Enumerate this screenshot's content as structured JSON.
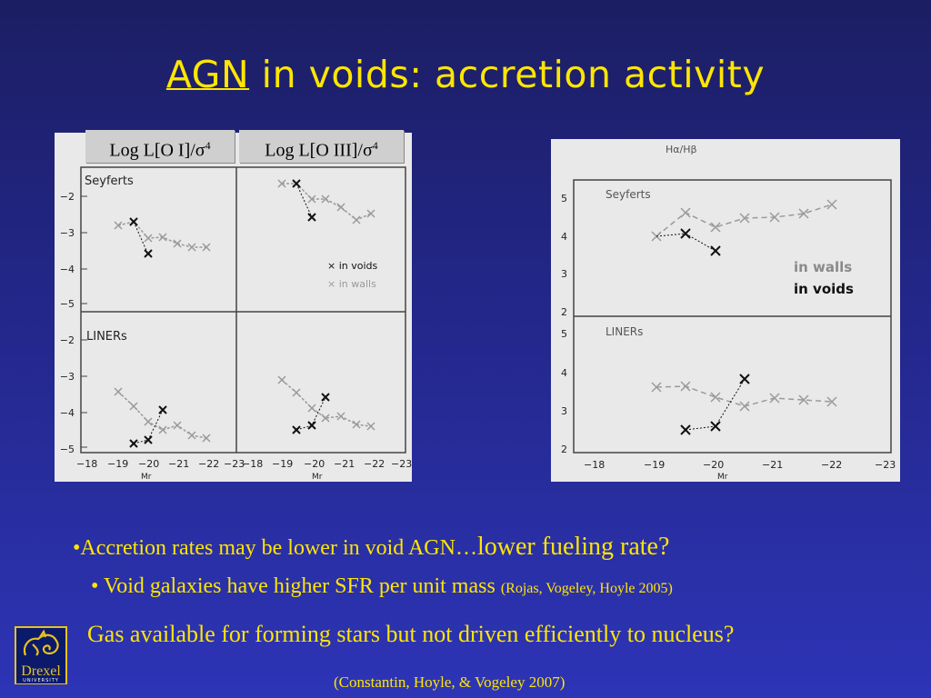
{
  "slide": {
    "title_agn": "AGN",
    "title_rest": " in voids: accretion activity"
  },
  "left_figure": {
    "header_oi": "Log L[O I]/σ",
    "header_oiii": "Log L[O III]/σ",
    "header_sup": "4",
    "label_seyferts": "Seyferts",
    "label_liners": "LINERs",
    "legend_voids": "× in voids",
    "legend_walls": "× in walls",
    "yticks": [
      "−2",
      "−3",
      "−4",
      "−5"
    ],
    "xticks_a": [
      "−18",
      "−19",
      "−20",
      "−21",
      "−22"
    ],
    "xticks_b": [
      "−23",
      "−18",
      "−19",
      "−20",
      "−21",
      "−22",
      "−23"
    ],
    "xlabel": "Mr"
  },
  "right_figure": {
    "title": "Hα/Hβ",
    "label_seyferts": "Seyferts",
    "label_liners": "LINERs",
    "legend_walls": "in walls",
    "legend_voids": "in voids",
    "yticks_top": [
      "5",
      "4",
      "3",
      "2"
    ],
    "yticks_bottom": [
      "5",
      "4",
      "3",
      "2"
    ],
    "xticks": [
      "−18",
      "−19",
      "−20",
      "−21",
      "−22",
      "−23"
    ],
    "xlabel": "Mr"
  },
  "bullets": {
    "b1_main": "•Accretion rates may be lower in void AGN…",
    "b1_big": "lower fueling rate?",
    "b2_main": "• Void galaxies have higher SFR per unit mass",
    "b2_cite": "(Rojas, Vogeley, Hoyle 2005)",
    "b3": "Gas available for forming stars but not driven efficiently to nucleus?",
    "citation": "(Constantin, Hoyle, & Vogeley 2007)"
  },
  "logo": {
    "name": "Drexel",
    "sub": "UNIVERSITY"
  },
  "colors": {
    "title": "#ffe600",
    "void_marker": "#111111",
    "wall_marker": "#9a9a9a"
  }
}
